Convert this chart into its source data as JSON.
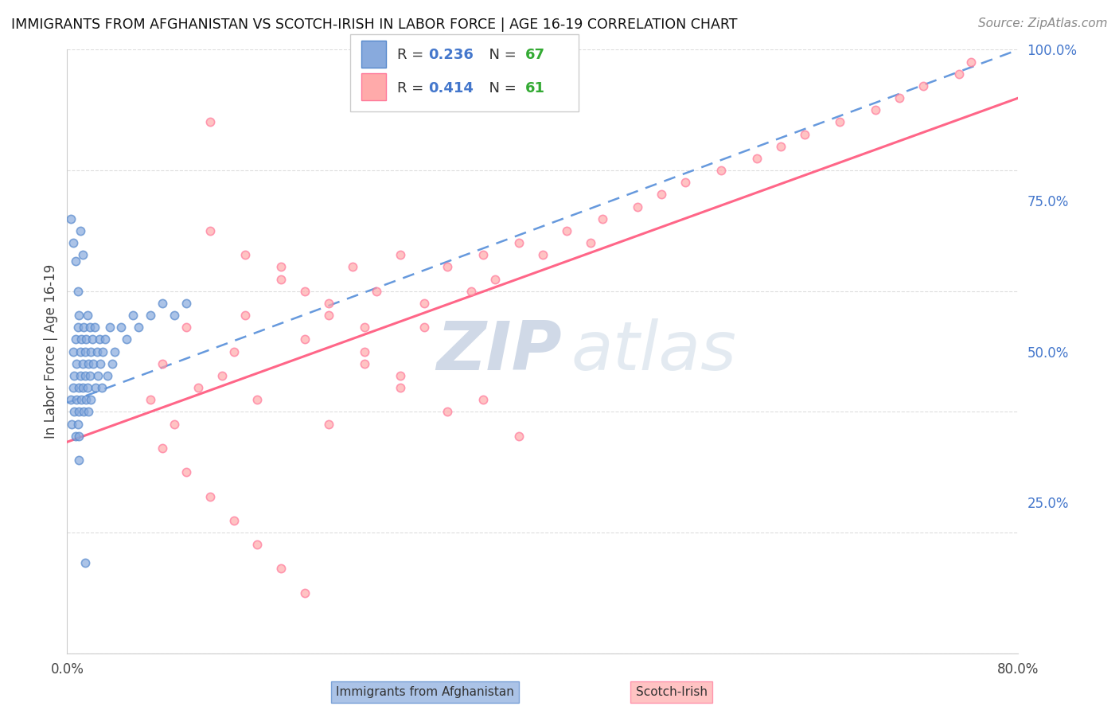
{
  "title": "IMMIGRANTS FROM AFGHANISTAN VS SCOTCH-IRISH IN LABOR FORCE | AGE 16-19 CORRELATION CHART",
  "source": "Source: ZipAtlas.com",
  "ylabel": "In Labor Force | Age 16-19",
  "xlim": [
    0.0,
    0.8
  ],
  "ylim": [
    0.0,
    1.0
  ],
  "xticklabels_vals": [
    0.0,
    0.8
  ],
  "xticklabels_strs": [
    "0.0%",
    "80.0%"
  ],
  "yticks_right": [
    0.25,
    0.5,
    0.75,
    1.0
  ],
  "yticklabels_right": [
    "25.0%",
    "50.0%",
    "75.0%",
    "100.0%"
  ],
  "color_blue": "#88AADD",
  "color_blue_edge": "#5588CC",
  "color_pink": "#FFAAAA",
  "color_pink_edge": "#FF7799",
  "color_blue_line": "#6699DD",
  "color_pink_line": "#FF6688",
  "color_r_value": "#4477CC",
  "color_n_value": "#33AA33",
  "watermark_zip": "ZIP",
  "watermark_atlas": "atlas",
  "grid_color": "#DDDDDD",
  "spine_color": "#CCCCCC",
  "blue_x": [
    0.003,
    0.004,
    0.005,
    0.005,
    0.006,
    0.006,
    0.007,
    0.007,
    0.008,
    0.008,
    0.009,
    0.009,
    0.01,
    0.01,
    0.01,
    0.01,
    0.01,
    0.011,
    0.011,
    0.012,
    0.012,
    0.013,
    0.013,
    0.014,
    0.014,
    0.015,
    0.015,
    0.016,
    0.016,
    0.017,
    0.017,
    0.018,
    0.018,
    0.019,
    0.019,
    0.02,
    0.02,
    0.021,
    0.022,
    0.023,
    0.024,
    0.025,
    0.026,
    0.027,
    0.028,
    0.029,
    0.03,
    0.032,
    0.034,
    0.036,
    0.038,
    0.04,
    0.045,
    0.05,
    0.055,
    0.06,
    0.07,
    0.08,
    0.09,
    0.1,
    0.003,
    0.005,
    0.007,
    0.009,
    0.011,
    0.013,
    0.015
  ],
  "blue_y": [
    0.42,
    0.38,
    0.44,
    0.5,
    0.46,
    0.4,
    0.52,
    0.36,
    0.48,
    0.42,
    0.54,
    0.38,
    0.56,
    0.44,
    0.4,
    0.36,
    0.32,
    0.5,
    0.46,
    0.52,
    0.42,
    0.48,
    0.44,
    0.54,
    0.4,
    0.5,
    0.46,
    0.52,
    0.42,
    0.56,
    0.44,
    0.48,
    0.4,
    0.54,
    0.46,
    0.5,
    0.42,
    0.52,
    0.48,
    0.54,
    0.44,
    0.5,
    0.46,
    0.52,
    0.48,
    0.44,
    0.5,
    0.52,
    0.46,
    0.54,
    0.48,
    0.5,
    0.54,
    0.52,
    0.56,
    0.54,
    0.56,
    0.58,
    0.56,
    0.58,
    0.72,
    0.68,
    0.65,
    0.6,
    0.7,
    0.66,
    0.15
  ],
  "pink_x": [
    0.07,
    0.08,
    0.09,
    0.1,
    0.11,
    0.12,
    0.13,
    0.14,
    0.15,
    0.16,
    0.18,
    0.2,
    0.22,
    0.24,
    0.25,
    0.26,
    0.28,
    0.3,
    0.32,
    0.34,
    0.35,
    0.36,
    0.38,
    0.4,
    0.42,
    0.44,
    0.45,
    0.48,
    0.5,
    0.52,
    0.55,
    0.58,
    0.6,
    0.62,
    0.65,
    0.68,
    0.7,
    0.72,
    0.75,
    0.76,
    0.08,
    0.1,
    0.12,
    0.14,
    0.16,
    0.18,
    0.2,
    0.22,
    0.25,
    0.28,
    0.12,
    0.15,
    0.18,
    0.2,
    0.22,
    0.25,
    0.28,
    0.3,
    0.32,
    0.35,
    0.38
  ],
  "pink_y": [
    0.42,
    0.48,
    0.38,
    0.54,
    0.44,
    0.88,
    0.46,
    0.5,
    0.56,
    0.42,
    0.62,
    0.52,
    0.58,
    0.64,
    0.54,
    0.6,
    0.66,
    0.58,
    0.64,
    0.6,
    0.66,
    0.62,
    0.68,
    0.66,
    0.7,
    0.68,
    0.72,
    0.74,
    0.76,
    0.78,
    0.8,
    0.82,
    0.84,
    0.86,
    0.88,
    0.9,
    0.92,
    0.94,
    0.96,
    0.98,
    0.34,
    0.3,
    0.26,
    0.22,
    0.18,
    0.14,
    0.1,
    0.38,
    0.5,
    0.46,
    0.7,
    0.66,
    0.64,
    0.6,
    0.56,
    0.48,
    0.44,
    0.54,
    0.4,
    0.42,
    0.36
  ],
  "blue_trend_x": [
    0.0,
    0.8
  ],
  "blue_trend_y": [
    0.415,
    1.0
  ],
  "pink_trend_x": [
    0.0,
    0.8
  ],
  "pink_trend_y": [
    0.35,
    0.92
  ]
}
